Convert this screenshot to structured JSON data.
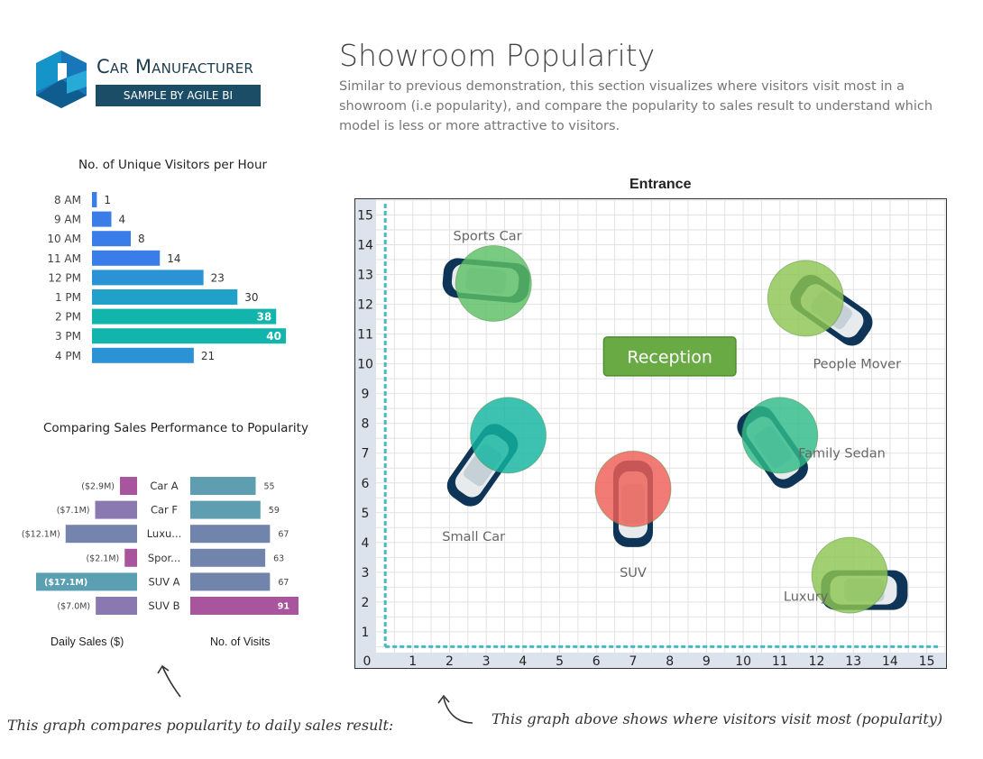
{
  "logo": {
    "brand": "Car Manufacturer",
    "tagline": "SAMPLE BY AGILE BI"
  },
  "header": {
    "title": "Showroom Popularity",
    "subtitle": "Similar to previous demonstration, this section visualizes where visitors visit most in a showroom (i.e popularity), and compare the popularity to sales result to understand which model is less or more attractive to visitors."
  },
  "colors": {
    "blue_low": "#3a7de8",
    "blue_mid": "#2b92d6",
    "teal_high": "#12b5ab",
    "reception": "#6aaa45",
    "car_body": "#0e3557"
  },
  "visitors_chart": {
    "title": "No. of Unique Visitors per Hour"
  },
  "sales_chart": {
    "title": "Comparing Sales Performance to Popularity",
    "left_axis_label": "Daily Sales ($)",
    "right_axis_label": "No. of Visits"
  },
  "floor": {
    "title": "Entrance",
    "reception_label": "Reception"
  },
  "notes": {
    "left": "This graph compares popularity to daily sales result:",
    "right": "This graph above shows where visitors visit most (popularity)"
  },
  "chart_data": [
    {
      "type": "bar",
      "title": "No. of Unique Visitors per Hour",
      "orientation": "horizontal",
      "categories": [
        "8 AM",
        "9 AM",
        "10 AM",
        "11 AM",
        "12 PM",
        "1 PM",
        "2 PM",
        "3 PM",
        "4 PM"
      ],
      "values": [
        1,
        4,
        8,
        14,
        23,
        30,
        38,
        40,
        21
      ],
      "colors": [
        "#3a7de8",
        "#3a7de8",
        "#3a7de8",
        "#3a7de8",
        "#2b92d6",
        "#21a1c9",
        "#12b5ab",
        "#12b5ab",
        "#2b92d6"
      ],
      "xlim": [
        0,
        40
      ]
    },
    {
      "type": "bar",
      "title": "Comparing Sales Performance to Popularity",
      "orientation": "horizontal",
      "categories": [
        "Car A",
        "Car F",
        "Luxu...",
        "Spor...",
        "SUV A",
        "SUV B"
      ],
      "series": [
        {
          "name": "Daily Sales ($)",
          "values": [
            2.9,
            7.1,
            12.1,
            2.1,
            17.1,
            7.0
          ],
          "labels": [
            "($2.9M)",
            "($7.1M)",
            "($12.1M)",
            "($2.1M)",
            "($17.1M)",
            "($7.0M)"
          ],
          "colors": [
            "#a9559e",
            "#8a79b0",
            "#7584ac",
            "#a9559e",
            "#5b9fb3",
            "#8a79b0"
          ],
          "xlim": [
            0,
            17.1
          ]
        },
        {
          "name": "No. of Visits",
          "values": [
            55,
            59,
            67,
            63,
            67,
            91
          ],
          "colors": [
            "#5e9eb0",
            "#5e9eb0",
            "#7184ac",
            "#7184ac",
            "#7184ac",
            "#a9559e"
          ],
          "xlim": [
            0,
            91
          ]
        }
      ]
    },
    {
      "type": "scatter",
      "title": "Entrance",
      "xlim": [
        0,
        15.5
      ],
      "ylim": [
        0.3,
        15.5
      ],
      "xticks": [
        0,
        1,
        2,
        3,
        4,
        5,
        6,
        7,
        8,
        9,
        10,
        11,
        12,
        13,
        14,
        15
      ],
      "yticks": [
        1,
        2,
        3,
        4,
        5,
        6,
        7,
        8,
        9,
        10,
        11,
        12,
        13,
        14,
        15
      ],
      "grid": true,
      "points": [
        {
          "label": "Sports Car",
          "x": 3.2,
          "y": 12.7,
          "color": "#5dbf66"
        },
        {
          "label": "People Mover",
          "x": 11.7,
          "y": 12.2,
          "color": "#8dc453"
        },
        {
          "label": "Small Car",
          "x": 3.6,
          "y": 7.6,
          "color": "#12b5a0"
        },
        {
          "label": "Family Sedan",
          "x": 11.0,
          "y": 7.6,
          "color": "#2fbb8a"
        },
        {
          "label": "SUV",
          "x": 7.0,
          "y": 5.8,
          "color": "#ef5f57"
        },
        {
          "label": "Luxury",
          "x": 12.9,
          "y": 2.9,
          "color": "#8dc453"
        }
      ]
    }
  ]
}
